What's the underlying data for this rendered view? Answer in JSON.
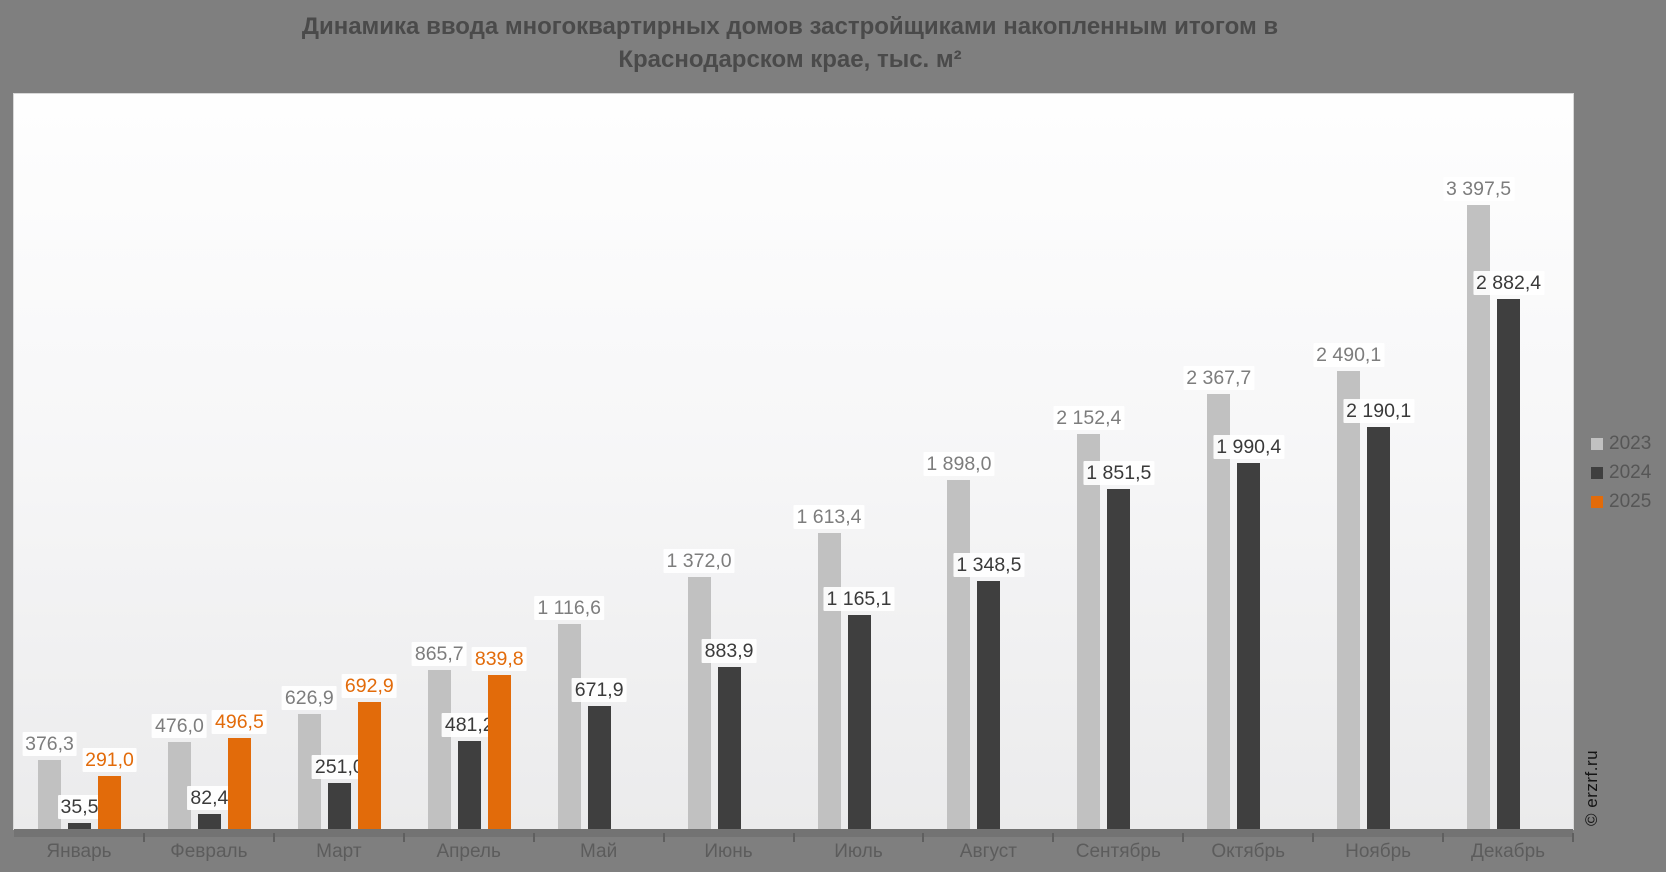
{
  "title": {
    "line1": "Динамика ввода многоквартирных домов застройщиками накопленным итогом в",
    "line2": "Краснодарском крае, тыс. м²"
  },
  "watermark": "© erzrf.ru",
  "colors": {
    "page_background": "#7f7f7f",
    "plot_background_top": "#fefefe",
    "plot_background_bottom": "#ebebec",
    "axis_band": "#737373",
    "title_text": "#4a4a4a",
    "axis_text": "#5c5c5c",
    "legend_text": "#565656",
    "series_2023": "#c1c1c1",
    "series_2024": "#3f3f3f",
    "series_2025": "#e26b0a",
    "label_2023": "#7d7d7d",
    "label_2024": "#3a3a3a",
    "label_2025": "#e26b0a"
  },
  "legend": {
    "items": [
      {
        "label": "2023"
      },
      {
        "label": "2024"
      },
      {
        "label": "2025"
      }
    ]
  },
  "chart_data": {
    "type": "bar",
    "title": "Динамика ввода многоквартирных домов застройщиками накопленным итогом в Краснодарском крае, тыс. м²",
    "xlabel": "",
    "ylabel": "тыс. м²",
    "ylim": [
      0,
      4000
    ],
    "grid": false,
    "legend_position": "right",
    "categories": [
      "Январь",
      "Февраль",
      "Март",
      "Апрель",
      "Май",
      "Июнь",
      "Июль",
      "Август",
      "Сентябрь",
      "Октябрь",
      "Ноябрь",
      "Декабрь"
    ],
    "series": [
      {
        "name": "2023",
        "color": "#c1c1c1",
        "label_color": "#7d7d7d",
        "values": [
          376.3,
          476.0,
          626.9,
          865.7,
          1116.6,
          1372.0,
          1613.4,
          1898.0,
          2152.4,
          2367.7,
          2490.1,
          3397.5
        ],
        "labels": [
          "376,3",
          "476,0",
          "626,9",
          "865,7",
          "1 116,6",
          "1 372,0",
          "1 613,4",
          "1 898,0",
          "2 152,4",
          "2 367,7",
          "2 490,1",
          "3 397,5"
        ]
      },
      {
        "name": "2024",
        "color": "#3f3f3f",
        "label_color": "#3a3a3a",
        "values": [
          35.5,
          82.4,
          251.0,
          481.2,
          671.9,
          883.9,
          1165.1,
          1348.5,
          1851.5,
          1990.4,
          2190.1,
          2882.4
        ],
        "labels": [
          "35,5",
          "82,4",
          "251,0",
          "481,2",
          "671,9",
          "883,9",
          "1 165,1",
          "1 348,5",
          "1 851,5",
          "1 990,4",
          "2 190,1",
          "2 882,4"
        ]
      },
      {
        "name": "2025",
        "color": "#e26b0a",
        "label_color": "#e26b0a",
        "values": [
          291.0,
          496.5,
          692.9,
          839.8,
          null,
          null,
          null,
          null,
          null,
          null,
          null,
          null
        ],
        "labels": [
          "291,0",
          "496,5",
          "692,9",
          "839,8",
          null,
          null,
          null,
          null,
          null,
          null,
          null,
          null
        ]
      }
    ]
  }
}
